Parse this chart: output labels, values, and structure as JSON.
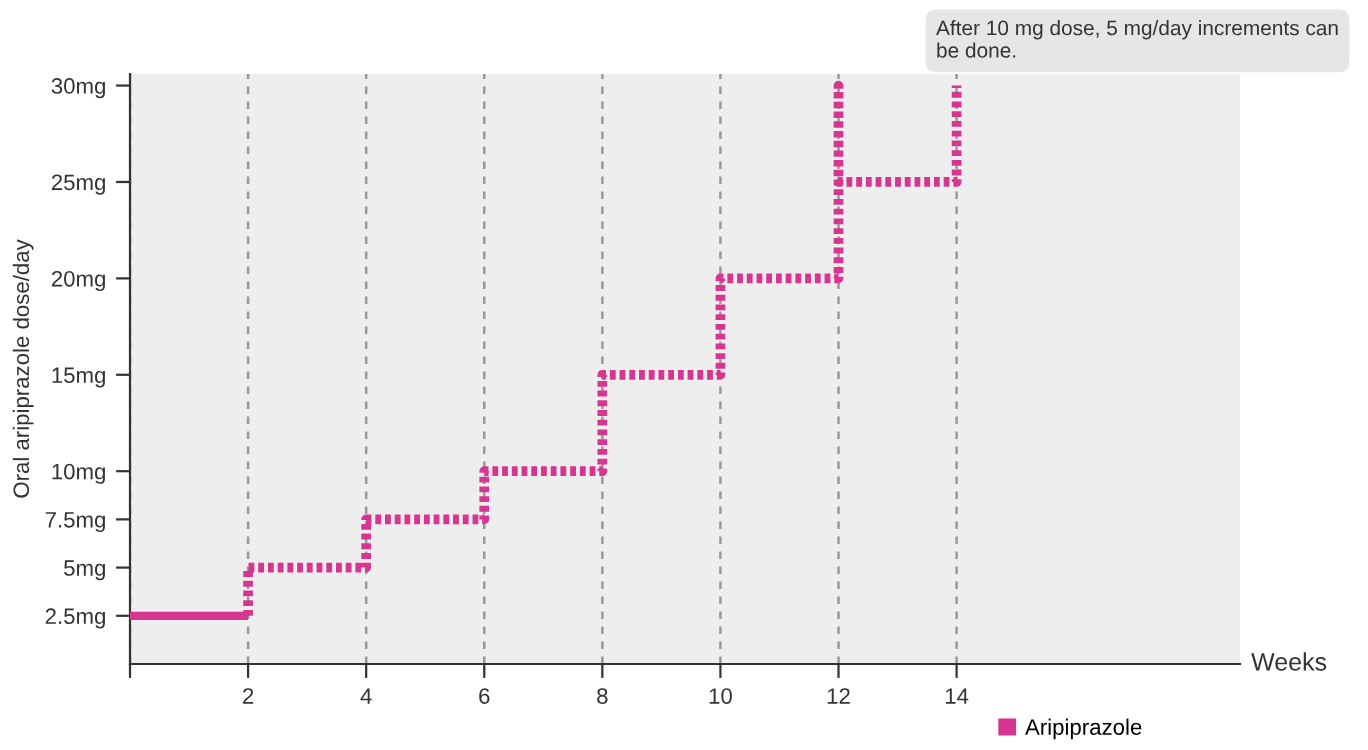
{
  "chart_data": {
    "type": "line",
    "ylabel": "Oral aripiprazole dose/day",
    "xlabel": "Weeks",
    "annotations": [
      "After 10 mg dose, 5 mg/day increments can be done."
    ],
    "series": [
      {
        "name": "Aripiprazole",
        "color": "#d6368f",
        "line_style": "solid",
        "x": [
          0,
          2
        ],
        "values": [
          2.5,
          2.5
        ]
      },
      {
        "color": "#d6368f",
        "line_style": "dotted",
        "x": [
          2,
          2,
          4,
          4,
          6,
          6,
          8,
          8,
          10,
          10,
          12,
          12,
          12,
          14,
          14
        ],
        "values": [
          2.5,
          5,
          5,
          7.5,
          7.5,
          10,
          10,
          15,
          15,
          20,
          20,
          30,
          25,
          25,
          30
        ]
      }
    ],
    "xlim": [
      0,
      18.8
    ],
    "ylim": [
      0,
      30.6
    ],
    "xticks": [
      {
        "value": 0,
        "label": null
      },
      2,
      4,
      6,
      8,
      10,
      12,
      14
    ],
    "yticks": [
      {
        "value": 2.5,
        "label": "2.5mg"
      },
      {
        "value": 5,
        "label": "5mg"
      },
      {
        "value": 7.5,
        "label": "7.5mg"
      },
      {
        "value": 10,
        "label": "10mg"
      },
      {
        "value": 15,
        "label": "15mg"
      },
      {
        "value": 20,
        "label": "20mg"
      },
      {
        "value": 25,
        "label": "25mg"
      },
      {
        "value": 30,
        "label": "30mg"
      }
    ],
    "grid": "x",
    "legend": "bottom right",
    "marker": "none"
  }
}
